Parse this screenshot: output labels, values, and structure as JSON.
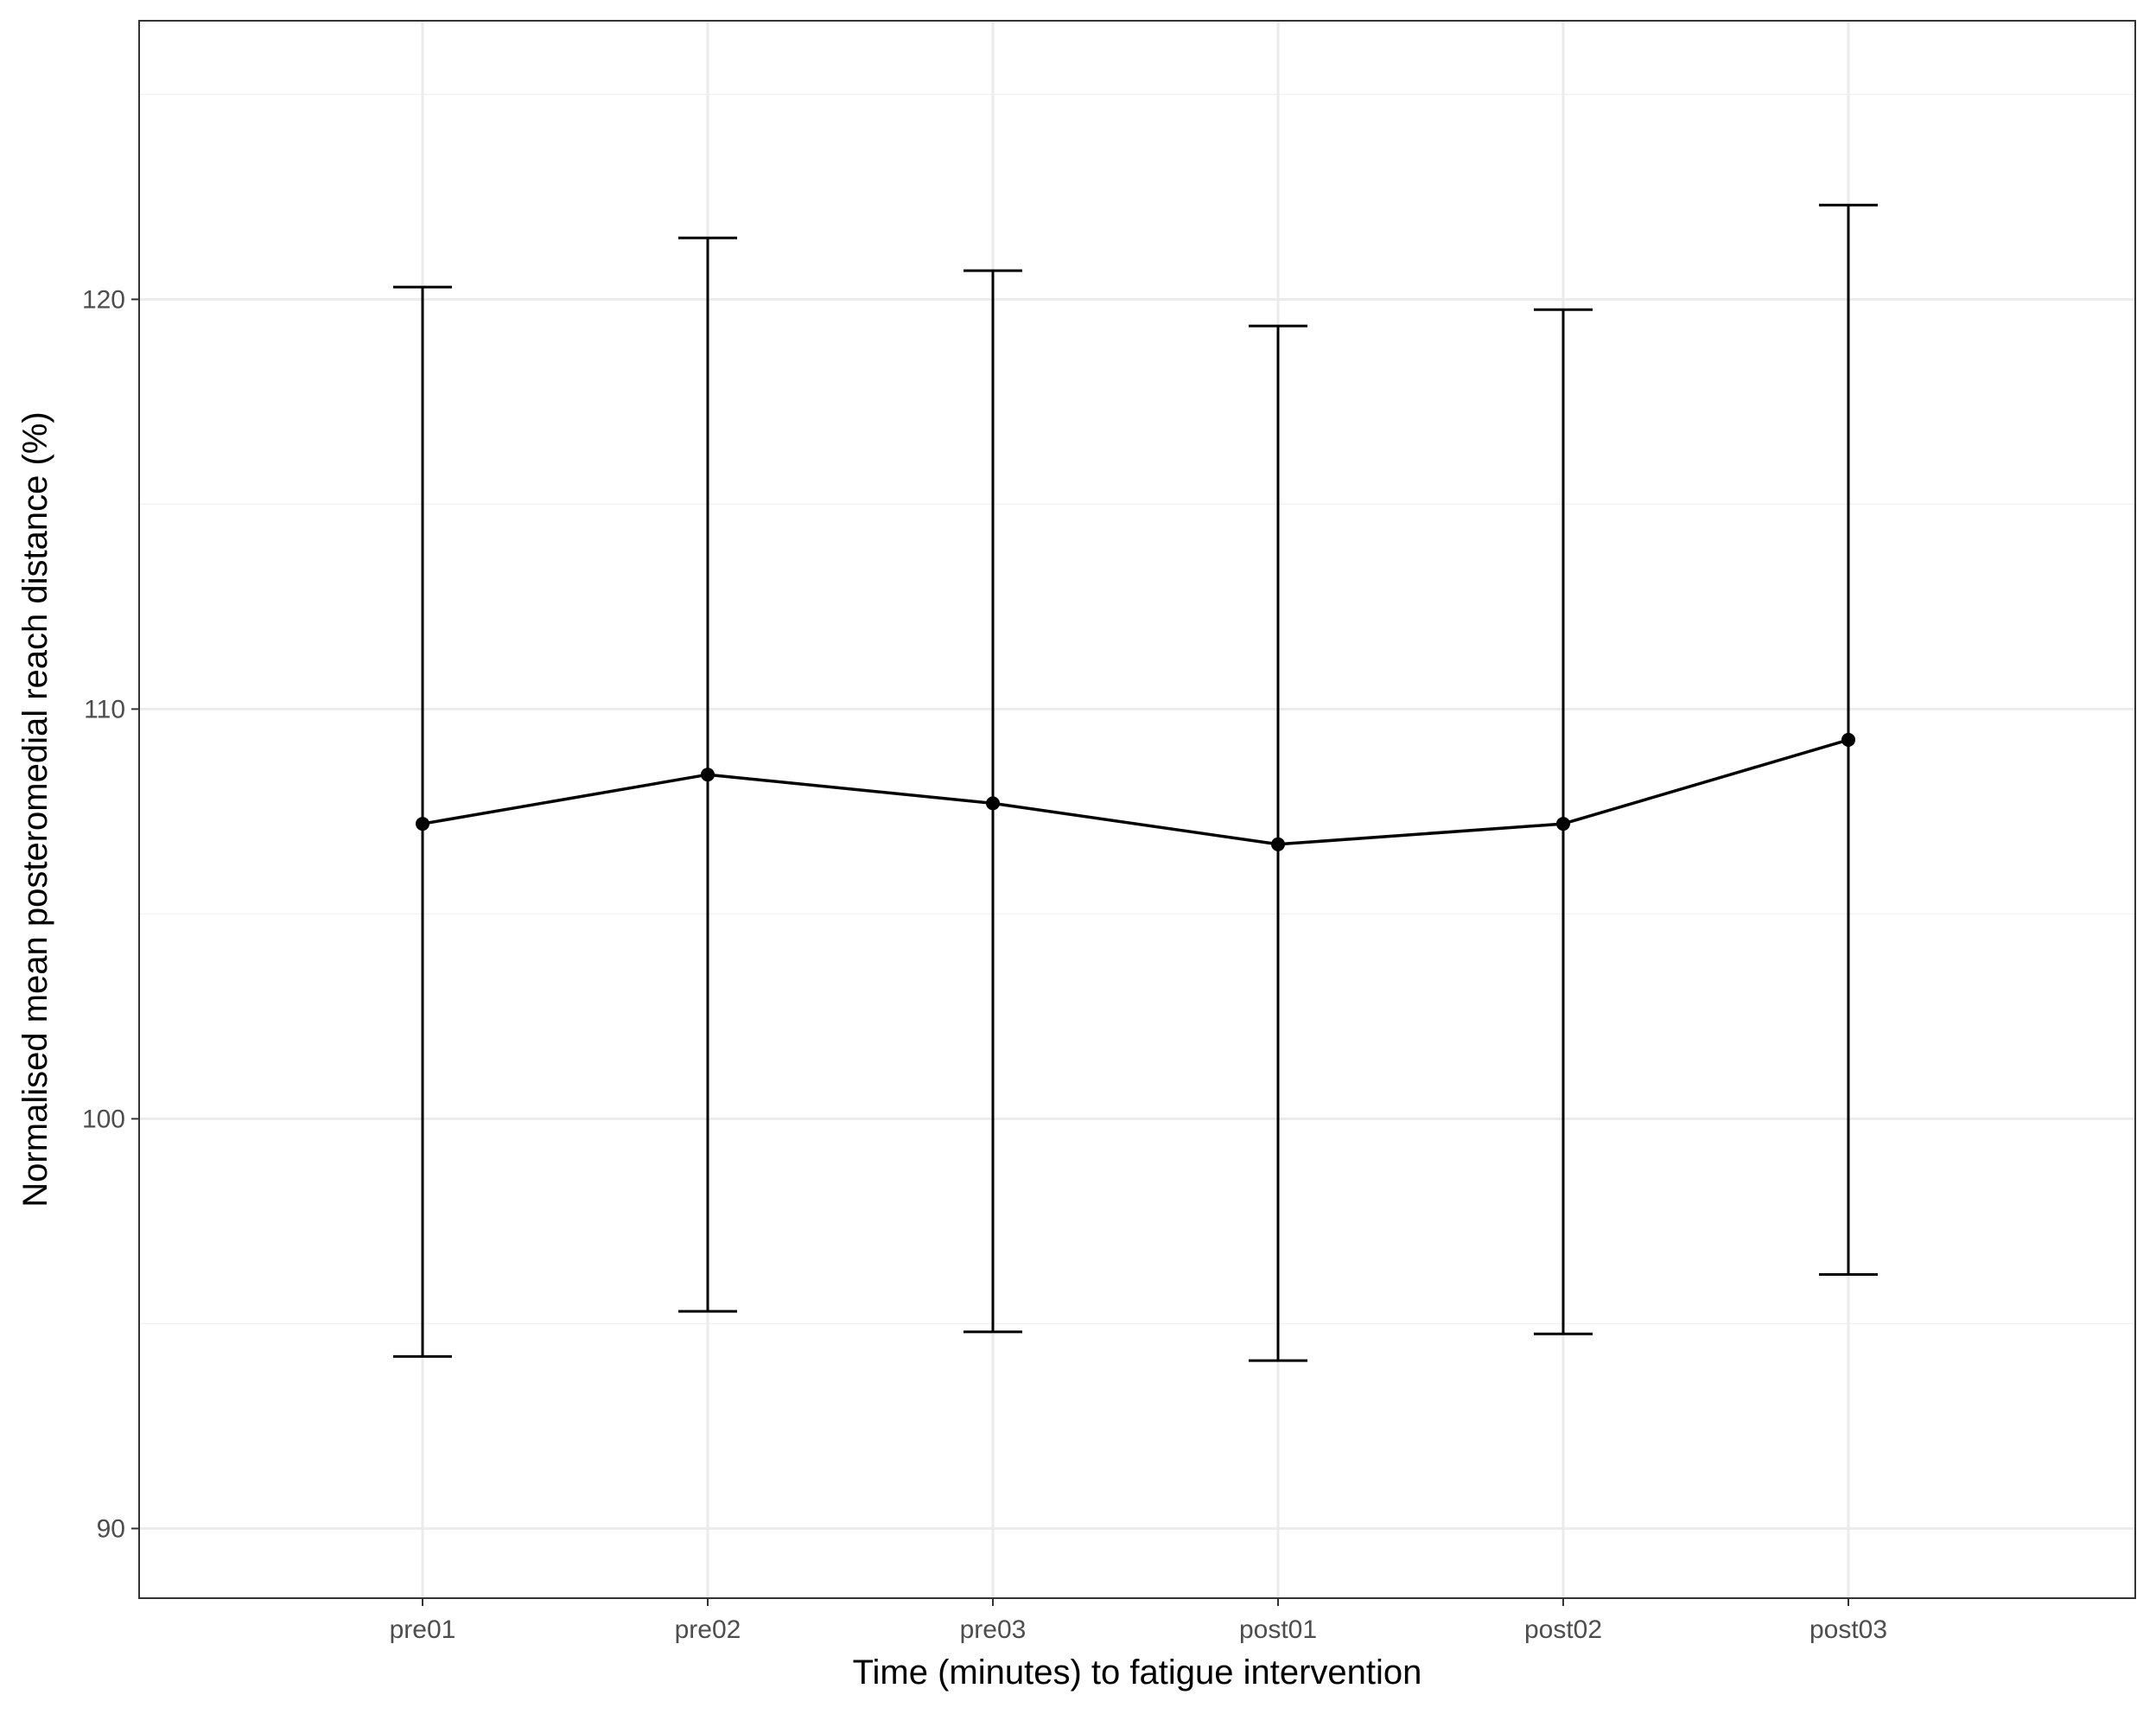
{
  "chart_data": {
    "type": "line",
    "title": "",
    "xlabel": "Time (minutes) to fatigue intervention",
    "ylabel": "Normalised mean posteromedial reach distance (%)",
    "categories": [
      "pre01",
      "pre02",
      "pre03",
      "post01",
      "post02",
      "post03"
    ],
    "series": [
      {
        "values": [
          107.2,
          108.4,
          107.7,
          106.7,
          107.2,
          109.25
        ],
        "error_low": [
          94.2,
          95.3,
          94.8,
          94.1,
          94.75,
          96.2
        ],
        "error_high": [
          120.3,
          121.5,
          120.7,
          119.35,
          119.75,
          122.3
        ]
      }
    ],
    "ylim": [
      88.3,
      126.8
    ],
    "yticks": [
      90,
      100,
      110,
      120
    ],
    "grid": true,
    "legend": "none",
    "colors": {
      "line": "#000000",
      "point": "#000000",
      "grid_major": "#ebebeb",
      "grid_minor": "#f2f2f2",
      "panel_border": "#333333",
      "tick_text": "#4d4d4d"
    }
  }
}
